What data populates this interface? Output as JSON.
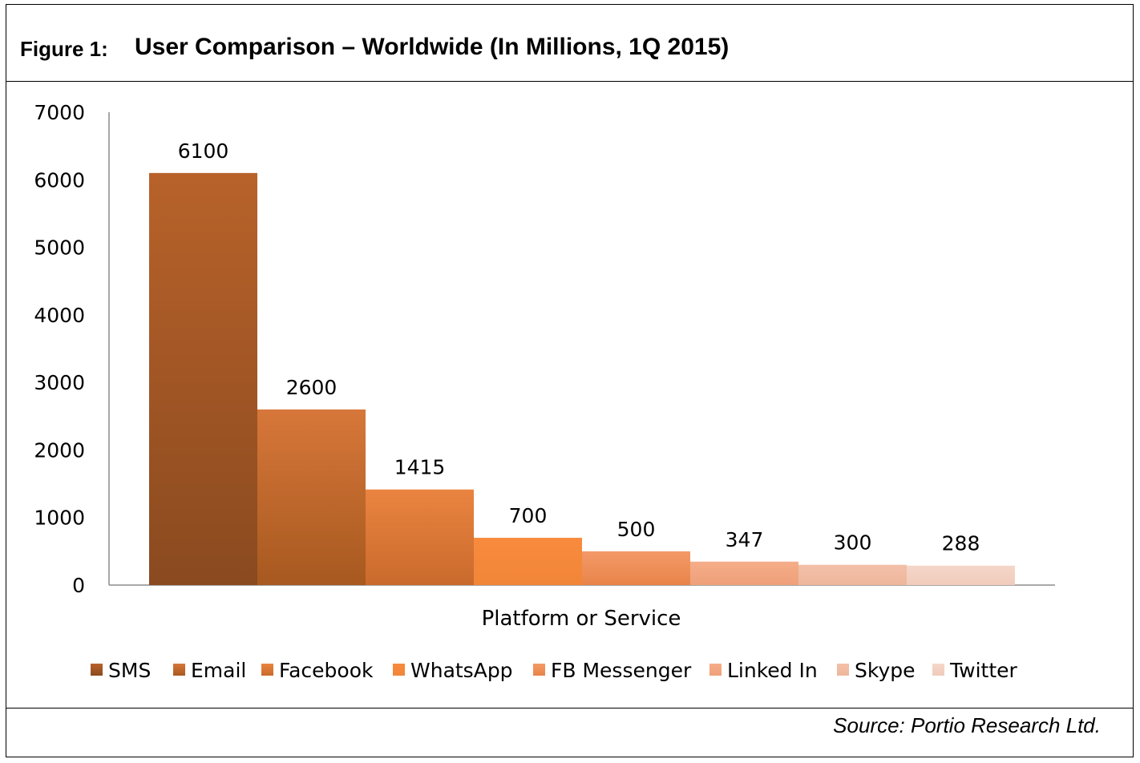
{
  "figure": {
    "label": "Figure 1:",
    "title": "User Comparison  – Worldwide (In Millions, 1Q 2015)",
    "source": "Source: Portio Research Ltd."
  },
  "chart_data": {
    "type": "bar",
    "categories": [
      "SMS",
      "Email",
      "Facebook",
      "WhatsApp",
      "FB Messenger",
      "Linked In",
      "Skype",
      "Twitter"
    ],
    "values": [
      6100,
      2600,
      1415,
      700,
      500,
      347,
      300,
      288
    ],
    "xlabel": "Platform or Service",
    "ylabel": "",
    "ylim": [
      0,
      7000
    ],
    "yticks": [
      0,
      1000,
      2000,
      3000,
      4000,
      5000,
      6000,
      7000
    ],
    "grid": false,
    "legend": "bottom",
    "colors": [
      {
        "top": "#b8622a",
        "bottom": "#8a4a1f"
      },
      {
        "top": "#d7773a",
        "bottom": "#a7591f"
      },
      {
        "top": "#ea8440",
        "bottom": "#c96a2c"
      },
      {
        "top": "#f88b3d",
        "bottom": "#f18538"
      },
      {
        "top": "#f39a68",
        "bottom": "#e98449"
      },
      {
        "top": "#f5ad88",
        "bottom": "#eea07a"
      },
      {
        "top": "#f3c0a8",
        "bottom": "#eeb79c"
      },
      {
        "top": "#f5d7ca",
        "bottom": "#f0cbbb"
      }
    ]
  }
}
